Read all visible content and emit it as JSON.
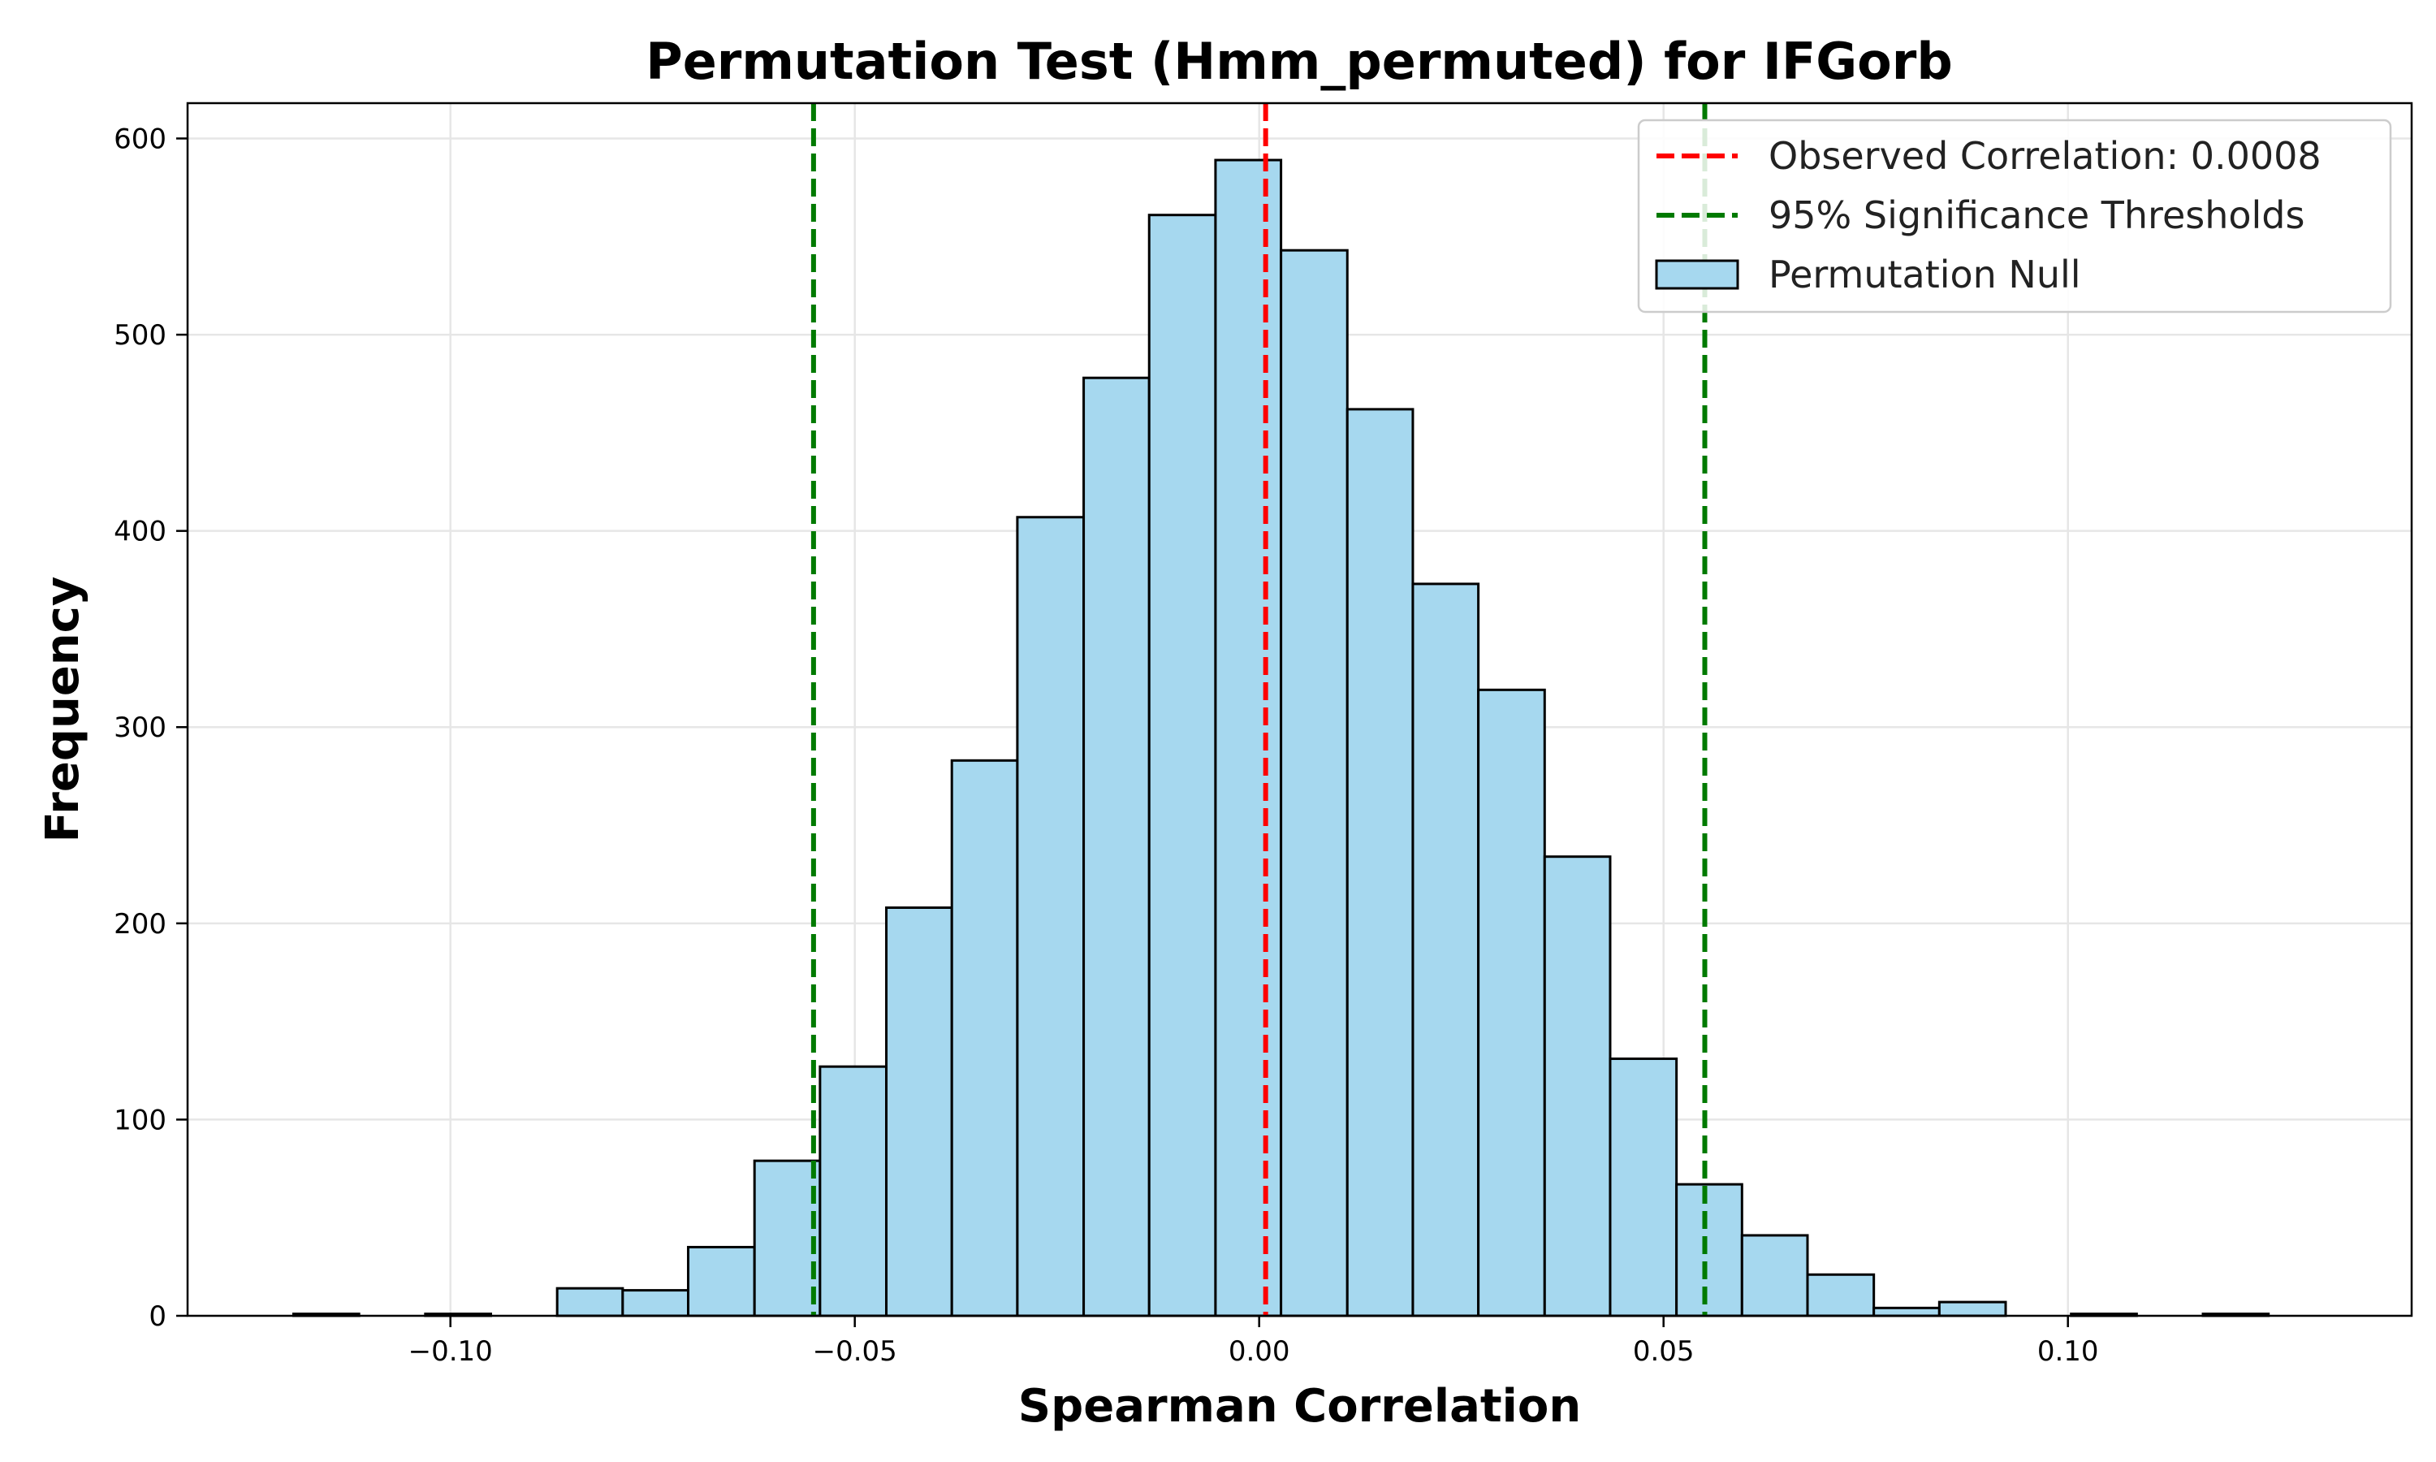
{
  "chart_data": {
    "type": "bar",
    "subtype": "histogram",
    "title": "Permutation Test (Hmm_permuted) for IFGorb",
    "xlabel": "Spearman Correlation",
    "ylabel": "Frequency",
    "xlim": [
      -0.1325,
      0.1425
    ],
    "ylim": [
      0,
      618
    ],
    "xticks": [
      -0.1,
      -0.05,
      0.0,
      0.05,
      0.1
    ],
    "xtick_labels": [
      "−0.10",
      "−0.05",
      "0.00",
      "0.05",
      "0.10"
    ],
    "yticks": [
      0,
      100,
      200,
      300,
      400,
      500,
      600
    ],
    "ytick_labels": [
      "0",
      "100",
      "200",
      "300",
      "400",
      "500",
      "600"
    ],
    "grid": true,
    "bin_edges": [
      -0.1194,
      -0.1113,
      -0.1031,
      -0.095,
      -0.0868,
      -0.0787,
      -0.0706,
      -0.0624,
      -0.0543,
      -0.0461,
      -0.038,
      -0.0299,
      -0.0217,
      -0.0136,
      -0.0054,
      0.0027,
      0.0109,
      0.019,
      0.0271,
      0.0353,
      0.0434,
      0.0516,
      0.0597,
      0.0678,
      0.076,
      0.0841,
      0.0923,
      0.1004,
      0.1085,
      0.1167,
      0.1248
    ],
    "counts": [
      1,
      0,
      1,
      0,
      14,
      13,
      35,
      79,
      127,
      208,
      283,
      407,
      478,
      561,
      589,
      543,
      462,
      373,
      319,
      234,
      131,
      67,
      41,
      21,
      4,
      7,
      0,
      1,
      0,
      1
    ],
    "bar_color": "#a6d8ef",
    "bar_edge_color": "#000000",
    "vlines": [
      {
        "name": "Observed Correlation: 0.0008",
        "x": 0.0008,
        "color": "#ff0000",
        "style": "dashed"
      },
      {
        "name": "95% Significance Thresholds",
        "x": -0.0551,
        "color": "#007a00",
        "style": "dashed"
      },
      {
        "x": 0.0551,
        "color": "#007a00",
        "style": "dashed"
      }
    ],
    "legend": {
      "placement": "top-right",
      "entries": [
        {
          "label": "Observed Correlation: 0.0008",
          "kind": "line",
          "color": "#ff0000"
        },
        {
          "label": "95% Significance Thresholds",
          "kind": "line",
          "color": "#007a00"
        },
        {
          "label": "Permutation Null",
          "kind": "patch",
          "color": "#a6d8ef"
        }
      ]
    }
  }
}
